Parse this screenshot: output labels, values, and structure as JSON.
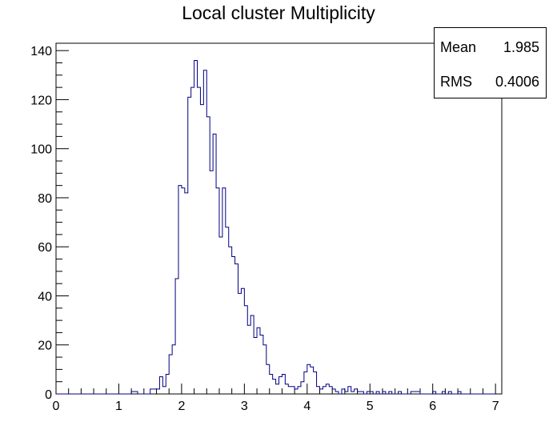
{
  "chart_data": {
    "type": "histogram",
    "title": "Local cluster Multiplicity",
    "xlabel": "",
    "ylabel": "",
    "xlim": [
      0,
      7.1
    ],
    "ylim": [
      0,
      143
    ],
    "x_ticks": [
      0,
      1,
      2,
      3,
      4,
      5,
      6,
      7
    ],
    "y_ticks": [
      0,
      20,
      40,
      60,
      80,
      100,
      120,
      140
    ],
    "grid": false,
    "line_color": "#000080",
    "bins": {
      "start": 0.0,
      "width": 0.05,
      "values": [
        0,
        0,
        0,
        0,
        0,
        0,
        0,
        0,
        0,
        0,
        0,
        0,
        0,
        0,
        0,
        0,
        0,
        0,
        0,
        0,
        0,
        0,
        0,
        0,
        1,
        1,
        0,
        0,
        0,
        0,
        2,
        2,
        2,
        7,
        3,
        8,
        16,
        20,
        47,
        85,
        84,
        82,
        121,
        125,
        136,
        125,
        118,
        132,
        113,
        91,
        106,
        84,
        64,
        84,
        68,
        60,
        56,
        53,
        41,
        43,
        36,
        28,
        32,
        23,
        27,
        24,
        20,
        12,
        8,
        6,
        4,
        7,
        8,
        4,
        3,
        3,
        2,
        3,
        5,
        9,
        12,
        11,
        9,
        3,
        2,
        3,
        4,
        3,
        2,
        1,
        0,
        2,
        1,
        3,
        1,
        2,
        1,
        1,
        0,
        1,
        1,
        0,
        1,
        0,
        1,
        0,
        1,
        0,
        0,
        1,
        0,
        0,
        0,
        1,
        1,
        1,
        0,
        0,
        0,
        0,
        1,
        0,
        0,
        1,
        0,
        1,
        0,
        0,
        1,
        0,
        0,
        0,
        0,
        0,
        0,
        0,
        0,
        0,
        0,
        0
      ]
    },
    "stats": {
      "entries": [
        {
          "label": "Mean",
          "value": "1.985"
        },
        {
          "label": "RMS",
          "value": "0.4006"
        }
      ]
    }
  }
}
